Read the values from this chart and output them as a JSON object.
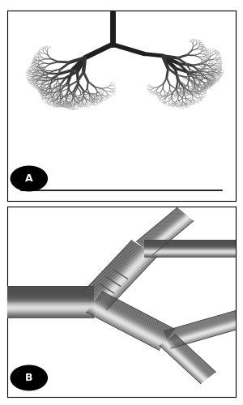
{
  "figure_width": 3.0,
  "figure_height": 5.0,
  "dpi": 100,
  "bg_color": "#ffffff",
  "border_color": "#000000",
  "border_lw": 0.8,
  "panel_a_bg": "#ffffff",
  "panel_b_bg": "#ffffff",
  "label_A": "A",
  "label_B": "B",
  "label_bg": "#000000",
  "label_fg": "#ffffff",
  "label_fontsize": 9,
  "tree_color_dark": "#1a1a1a",
  "tree_color_mid": "#3a3a3a",
  "tree_color_light": "#6a6a6a",
  "trachea_color": "#2a2a2a",
  "diaphragm_lw": 1.2,
  "tube_n_stripes": 30,
  "tube_highlight": 220,
  "tube_shadow": 80,
  "tube_edge_color": "#444444"
}
